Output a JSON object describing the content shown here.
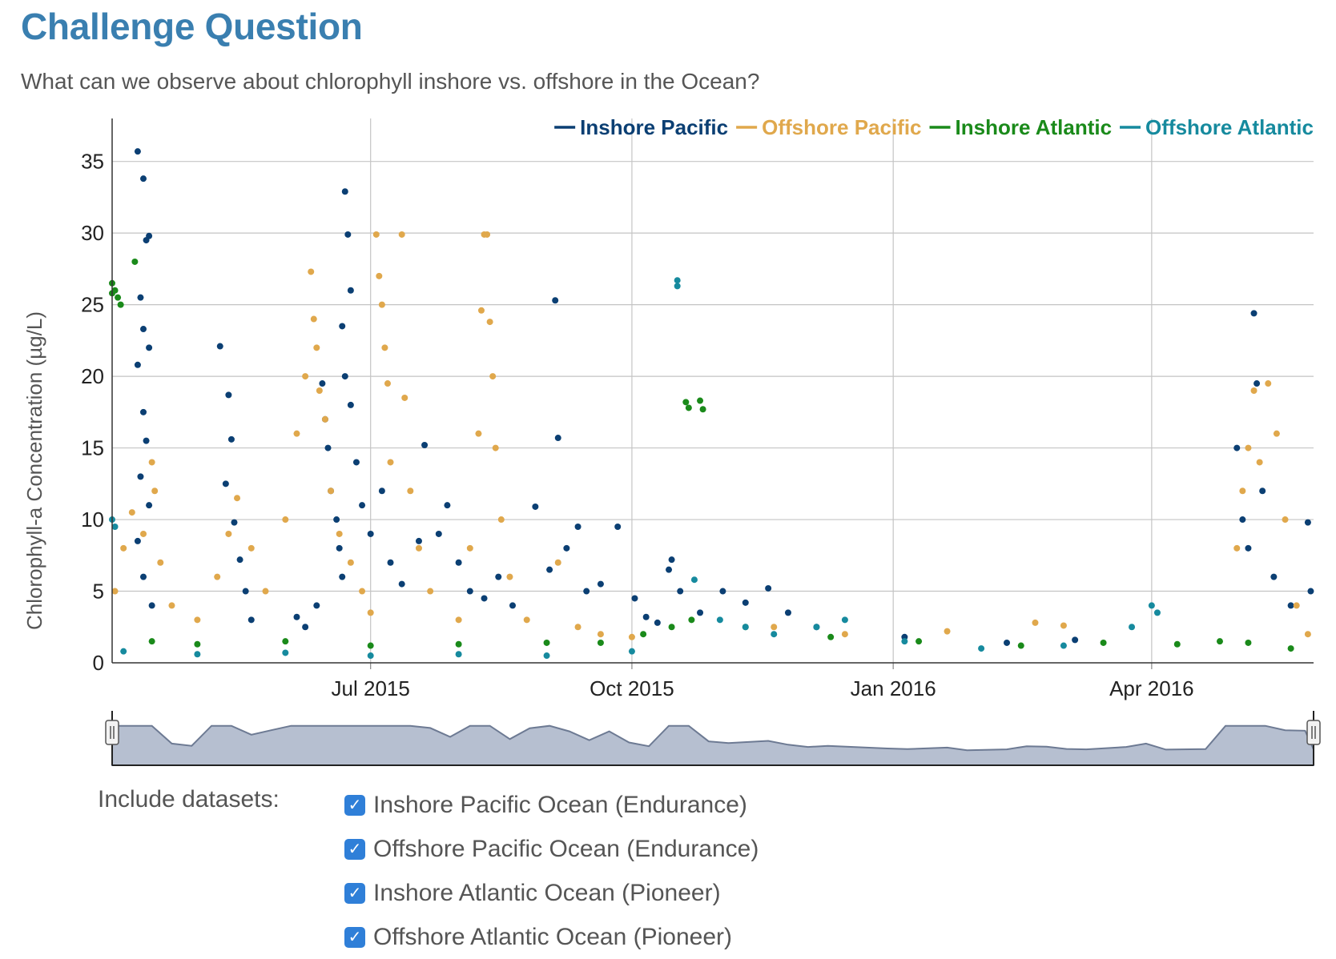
{
  "page": {
    "title": "Challenge Question",
    "question": "What can we observe about chlorophyll inshore vs. offshore in the Ocean?"
  },
  "colors": {
    "inshore_pacific": "#0b3f73",
    "offshore_pacific": "#e0a84c",
    "inshore_atlantic": "#1a8a1a",
    "offshore_atlantic": "#168a9e",
    "title": "#3a7fb0",
    "navigator_fill": "#b6bfd0",
    "navigator_line": "#6d7a93"
  },
  "chart_data": {
    "type": "scatter",
    "title": "",
    "xlabel": "",
    "ylabel": "Chlorophyll-a Concentration (µg/L)",
    "xlim": [
      "2015-04-01",
      "2016-05-28"
    ],
    "ylim": [
      0,
      38
    ],
    "yticks": [
      0,
      5,
      10,
      15,
      20,
      25,
      30,
      35
    ],
    "xticks": [
      {
        "date": "2015-07-01",
        "label": "Jul 2015"
      },
      {
        "date": "2015-10-01",
        "label": "Oct 2015"
      },
      {
        "date": "2016-01-01",
        "label": "Jan 2016"
      },
      {
        "date": "2016-04-01",
        "label": "Apr 2016"
      }
    ],
    "grid": true,
    "legend_position": "top-right",
    "series": [
      {
        "name": "Inshore Pacific",
        "color": "#0b3f73",
        "points": [
          {
            "x": "2015-04-10",
            "y": 35.7
          },
          {
            "x": "2015-04-12",
            "y": 33.8
          },
          {
            "x": "2015-04-13",
            "y": 29.5
          },
          {
            "x": "2015-04-14",
            "y": 29.8
          },
          {
            "x": "2015-04-11",
            "y": 25.5
          },
          {
            "x": "2015-04-12",
            "y": 23.3
          },
          {
            "x": "2015-04-14",
            "y": 22.0
          },
          {
            "x": "2015-04-10",
            "y": 20.8
          },
          {
            "x": "2015-04-12",
            "y": 17.5
          },
          {
            "x": "2015-04-13",
            "y": 15.5
          },
          {
            "x": "2015-04-11",
            "y": 13.0
          },
          {
            "x": "2015-04-14",
            "y": 11.0
          },
          {
            "x": "2015-04-10",
            "y": 8.5
          },
          {
            "x": "2015-04-12",
            "y": 6.0
          },
          {
            "x": "2015-04-15",
            "y": 4.0
          },
          {
            "x": "2015-05-09",
            "y": 22.1
          },
          {
            "x": "2015-05-12",
            "y": 18.7
          },
          {
            "x": "2015-05-13",
            "y": 15.6
          },
          {
            "x": "2015-05-11",
            "y": 12.5
          },
          {
            "x": "2015-05-14",
            "y": 9.8
          },
          {
            "x": "2015-05-16",
            "y": 7.2
          },
          {
            "x": "2015-05-18",
            "y": 5.0
          },
          {
            "x": "2015-05-20",
            "y": 3.0
          },
          {
            "x": "2015-06-05",
            "y": 3.2
          },
          {
            "x": "2015-06-08",
            "y": 2.5
          },
          {
            "x": "2015-06-12",
            "y": 4.0
          },
          {
            "x": "2015-06-14",
            "y": 19.5
          },
          {
            "x": "2015-06-15",
            "y": 17.0
          },
          {
            "x": "2015-06-16",
            "y": 15.0
          },
          {
            "x": "2015-06-17",
            "y": 12.0
          },
          {
            "x": "2015-06-19",
            "y": 10.0
          },
          {
            "x": "2015-06-20",
            "y": 8.0
          },
          {
            "x": "2015-06-21",
            "y": 6.0
          },
          {
            "x": "2015-06-22",
            "y": 32.9
          },
          {
            "x": "2015-06-23",
            "y": 29.9
          },
          {
            "x": "2015-06-24",
            "y": 26.0
          },
          {
            "x": "2015-06-21",
            "y": 23.5
          },
          {
            "x": "2015-06-22",
            "y": 20.0
          },
          {
            "x": "2015-06-24",
            "y": 18.0
          },
          {
            "x": "2015-06-26",
            "y": 14.0
          },
          {
            "x": "2015-06-28",
            "y": 11.0
          },
          {
            "x": "2015-07-01",
            "y": 9.0
          },
          {
            "x": "2015-07-05",
            "y": 12.0
          },
          {
            "x": "2015-07-08",
            "y": 7.0
          },
          {
            "x": "2015-07-12",
            "y": 5.5
          },
          {
            "x": "2015-07-18",
            "y": 8.5
          },
          {
            "x": "2015-07-20",
            "y": 15.2
          },
          {
            "x": "2015-07-25",
            "y": 9.0
          },
          {
            "x": "2015-07-28",
            "y": 11.0
          },
          {
            "x": "2015-08-01",
            "y": 7.0
          },
          {
            "x": "2015-08-05",
            "y": 5.0
          },
          {
            "x": "2015-08-10",
            "y": 4.5
          },
          {
            "x": "2015-08-15",
            "y": 6.0
          },
          {
            "x": "2015-08-20",
            "y": 4.0
          },
          {
            "x": "2015-08-28",
            "y": 10.9
          },
          {
            "x": "2015-09-02",
            "y": 6.5
          },
          {
            "x": "2015-09-04",
            "y": 25.3
          },
          {
            "x": "2015-09-05",
            "y": 15.7
          },
          {
            "x": "2015-09-08",
            "y": 8.0
          },
          {
            "x": "2015-09-12",
            "y": 9.5
          },
          {
            "x": "2015-09-15",
            "y": 5.0
          },
          {
            "x": "2015-09-20",
            "y": 5.5
          },
          {
            "x": "2015-09-26",
            "y": 9.5
          },
          {
            "x": "2015-10-02",
            "y": 4.5
          },
          {
            "x": "2015-10-06",
            "y": 3.2
          },
          {
            "x": "2015-10-10",
            "y": 2.8
          },
          {
            "x": "2015-10-14",
            "y": 6.5
          },
          {
            "x": "2015-10-15",
            "y": 7.2
          },
          {
            "x": "2015-10-18",
            "y": 5.0
          },
          {
            "x": "2015-10-25",
            "y": 3.5
          },
          {
            "x": "2015-11-02",
            "y": 5.0
          },
          {
            "x": "2015-11-10",
            "y": 4.2
          },
          {
            "x": "2015-11-18",
            "y": 5.2
          },
          {
            "x": "2015-11-25",
            "y": 3.5
          },
          {
            "x": "2015-12-05",
            "y": 2.5
          },
          {
            "x": "2016-01-05",
            "y": 1.8
          },
          {
            "x": "2016-02-10",
            "y": 1.4
          },
          {
            "x": "2016-03-05",
            "y": 1.6
          },
          {
            "x": "2016-05-07",
            "y": 24.4
          },
          {
            "x": "2016-05-01",
            "y": 15.0
          },
          {
            "x": "2016-05-03",
            "y": 10.0
          },
          {
            "x": "2016-05-05",
            "y": 8.0
          },
          {
            "x": "2016-05-08",
            "y": 19.5
          },
          {
            "x": "2016-05-10",
            "y": 12.0
          },
          {
            "x": "2016-05-14",
            "y": 6.0
          },
          {
            "x": "2016-05-20",
            "y": 4.0
          },
          {
            "x": "2016-05-26",
            "y": 9.8
          },
          {
            "x": "2016-05-27",
            "y": 5.0
          }
        ]
      },
      {
        "name": "Offshore Pacific",
        "color": "#e0a84c",
        "points": [
          {
            "x": "2015-04-02",
            "y": 5.0
          },
          {
            "x": "2015-04-05",
            "y": 8.0
          },
          {
            "x": "2015-04-08",
            "y": 10.5
          },
          {
            "x": "2015-04-12",
            "y": 9.0
          },
          {
            "x": "2015-04-15",
            "y": 14.0
          },
          {
            "x": "2015-04-16",
            "y": 12.0
          },
          {
            "x": "2015-04-18",
            "y": 7.0
          },
          {
            "x": "2015-04-22",
            "y": 4.0
          },
          {
            "x": "2015-05-01",
            "y": 3.0
          },
          {
            "x": "2015-05-08",
            "y": 6.0
          },
          {
            "x": "2015-05-12",
            "y": 9.0
          },
          {
            "x": "2015-05-15",
            "y": 11.5
          },
          {
            "x": "2015-05-20",
            "y": 8.0
          },
          {
            "x": "2015-05-25",
            "y": 5.0
          },
          {
            "x": "2015-06-01",
            "y": 10.0
          },
          {
            "x": "2015-06-05",
            "y": 16.0
          },
          {
            "x": "2015-06-08",
            "y": 20.0
          },
          {
            "x": "2015-06-10",
            "y": 27.3
          },
          {
            "x": "2015-06-11",
            "y": 24.0
          },
          {
            "x": "2015-06-12",
            "y": 22.0
          },
          {
            "x": "2015-06-13",
            "y": 19.0
          },
          {
            "x": "2015-06-15",
            "y": 17.0
          },
          {
            "x": "2015-06-17",
            "y": 12.0
          },
          {
            "x": "2015-06-20",
            "y": 9.0
          },
          {
            "x": "2015-06-24",
            "y": 7.0
          },
          {
            "x": "2015-06-28",
            "y": 5.0
          },
          {
            "x": "2015-07-01",
            "y": 3.5
          },
          {
            "x": "2015-07-03",
            "y": 29.9
          },
          {
            "x": "2015-07-04",
            "y": 27.0
          },
          {
            "x": "2015-07-05",
            "y": 25.0
          },
          {
            "x": "2015-07-06",
            "y": 22.0
          },
          {
            "x": "2015-07-07",
            "y": 19.5
          },
          {
            "x": "2015-07-08",
            "y": 14.0
          },
          {
            "x": "2015-07-12",
            "y": 29.9
          },
          {
            "x": "2015-07-13",
            "y": 18.5
          },
          {
            "x": "2015-07-15",
            "y": 12.0
          },
          {
            "x": "2015-07-18",
            "y": 8.0
          },
          {
            "x": "2015-07-22",
            "y": 5.0
          },
          {
            "x": "2015-08-01",
            "y": 3.0
          },
          {
            "x": "2015-08-05",
            "y": 8.0
          },
          {
            "x": "2015-08-08",
            "y": 16.0
          },
          {
            "x": "2015-08-09",
            "y": 24.6
          },
          {
            "x": "2015-08-10",
            "y": 29.9
          },
          {
            "x": "2015-08-11",
            "y": 29.9
          },
          {
            "x": "2015-08-12",
            "y": 23.8
          },
          {
            "x": "2015-08-13",
            "y": 20.0
          },
          {
            "x": "2015-08-14",
            "y": 15.0
          },
          {
            "x": "2015-08-16",
            "y": 10.0
          },
          {
            "x": "2015-08-19",
            "y": 6.0
          },
          {
            "x": "2015-08-25",
            "y": 3.0
          },
          {
            "x": "2015-09-05",
            "y": 7.0
          },
          {
            "x": "2015-09-12",
            "y": 2.5
          },
          {
            "x": "2015-09-20",
            "y": 2.0
          },
          {
            "x": "2015-10-01",
            "y": 1.8
          },
          {
            "x": "2015-11-20",
            "y": 2.5
          },
          {
            "x": "2015-12-15",
            "y": 2.0
          },
          {
            "x": "2016-01-20",
            "y": 2.2
          },
          {
            "x": "2016-02-20",
            "y": 2.8
          },
          {
            "x": "2016-03-01",
            "y": 2.6
          },
          {
            "x": "2016-05-01",
            "y": 8.0
          },
          {
            "x": "2016-05-03",
            "y": 12.0
          },
          {
            "x": "2016-05-05",
            "y": 15.0
          },
          {
            "x": "2016-05-07",
            "y": 19.0
          },
          {
            "x": "2016-05-09",
            "y": 14.0
          },
          {
            "x": "2016-05-12",
            "y": 19.5
          },
          {
            "x": "2016-05-15",
            "y": 16.0
          },
          {
            "x": "2016-05-18",
            "y": 10.0
          },
          {
            "x": "2016-05-22",
            "y": 4.0
          },
          {
            "x": "2016-05-26",
            "y": 2.0
          }
        ]
      },
      {
        "name": "Inshore Atlantic",
        "color": "#1a8a1a",
        "points": [
          {
            "x": "2015-04-01",
            "y": 26.5
          },
          {
            "x": "2015-04-02",
            "y": 26.0
          },
          {
            "x": "2015-04-03",
            "y": 25.5
          },
          {
            "x": "2015-04-04",
            "y": 25.0
          },
          {
            "x": "2015-04-01",
            "y": 25.8
          },
          {
            "x": "2015-04-09",
            "y": 28.0
          },
          {
            "x": "2015-04-15",
            "y": 1.5
          },
          {
            "x": "2015-05-01",
            "y": 1.3
          },
          {
            "x": "2015-06-01",
            "y": 1.5
          },
          {
            "x": "2015-07-01",
            "y": 1.2
          },
          {
            "x": "2015-08-01",
            "y": 1.3
          },
          {
            "x": "2015-09-01",
            "y": 1.4
          },
          {
            "x": "2015-09-20",
            "y": 1.4
          },
          {
            "x": "2015-10-05",
            "y": 2.0
          },
          {
            "x": "2015-10-15",
            "y": 2.5
          },
          {
            "x": "2015-10-22",
            "y": 3.0
          },
          {
            "x": "2015-10-20",
            "y": 18.2
          },
          {
            "x": "2015-10-21",
            "y": 17.8
          },
          {
            "x": "2015-10-25",
            "y": 18.3
          },
          {
            "x": "2015-10-26",
            "y": 17.7
          },
          {
            "x": "2015-11-10",
            "y": 2.5
          },
          {
            "x": "2015-12-10",
            "y": 1.8
          },
          {
            "x": "2016-01-10",
            "y": 1.5
          },
          {
            "x": "2016-02-15",
            "y": 1.2
          },
          {
            "x": "2016-03-15",
            "y": 1.4
          },
          {
            "x": "2016-04-10",
            "y": 1.3
          },
          {
            "x": "2016-04-25",
            "y": 1.5
          },
          {
            "x": "2016-05-05",
            "y": 1.4
          },
          {
            "x": "2016-05-20",
            "y": 1.0
          }
        ]
      },
      {
        "name": "Offshore Atlantic",
        "color": "#168a9e",
        "points": [
          {
            "x": "2015-04-01",
            "y": 10.0
          },
          {
            "x": "2015-04-02",
            "y": 9.5
          },
          {
            "x": "2015-04-05",
            "y": 0.8
          },
          {
            "x": "2015-05-01",
            "y": 0.6
          },
          {
            "x": "2015-06-01",
            "y": 0.7
          },
          {
            "x": "2015-07-01",
            "y": 0.5
          },
          {
            "x": "2015-08-01",
            "y": 0.6
          },
          {
            "x": "2015-09-01",
            "y": 0.5
          },
          {
            "x": "2015-10-01",
            "y": 0.8
          },
          {
            "x": "2015-10-17",
            "y": 26.7
          },
          {
            "x": "2015-10-17",
            "y": 26.3
          },
          {
            "x": "2015-10-23",
            "y": 5.8
          },
          {
            "x": "2015-11-01",
            "y": 3.0
          },
          {
            "x": "2015-11-10",
            "y": 2.5
          },
          {
            "x": "2015-11-20",
            "y": 2.0
          },
          {
            "x": "2015-12-05",
            "y": 2.5
          },
          {
            "x": "2015-12-15",
            "y": 3.0
          },
          {
            "x": "2016-01-05",
            "y": 1.5
          },
          {
            "x": "2016-02-01",
            "y": 1.0
          },
          {
            "x": "2016-03-01",
            "y": 1.2
          },
          {
            "x": "2016-03-25",
            "y": 2.5
          },
          {
            "x": "2016-04-01",
            "y": 4.0
          },
          {
            "x": "2016-04-03",
            "y": 3.5
          }
        ]
      }
    ]
  },
  "datasets": {
    "label": "Include datasets:",
    "items": [
      {
        "label": "Inshore Pacific Ocean (Endurance)",
        "checked": true
      },
      {
        "label": "Offshore Pacific Ocean (Endurance)",
        "checked": true
      },
      {
        "label": "Inshore Atlantic Ocean (Pioneer)",
        "checked": true
      },
      {
        "label": "Offshore Atlantic Ocean (Pioneer)",
        "checked": true
      }
    ]
  }
}
